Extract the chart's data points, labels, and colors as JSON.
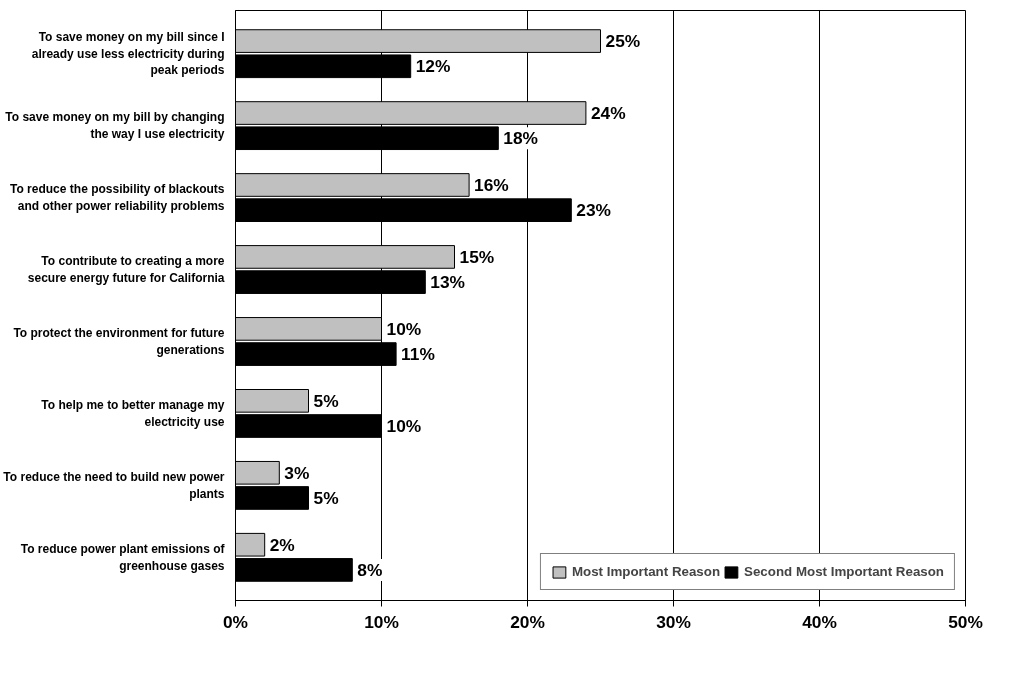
{
  "chart_data": {
    "type": "bar",
    "orientation": "horizontal",
    "categories": [
      "To save money on my bill since I already use less electricity during peak periods",
      "To save money on my bill by changing the way I use electricity",
      "To reduce the possibility of blackouts and other power reliability problems",
      "To contribute to creating a more secure energy future for California",
      "To protect the environment for future generations",
      "To help me to better manage my electricity use",
      "To reduce the need to build new power plants",
      "To reduce power plant emissions of greenhouse gases"
    ],
    "series": [
      {
        "name": "Most Important Reason",
        "color": "#c0c0c0",
        "values": [
          25,
          24,
          16,
          15,
          10,
          5,
          3,
          2
        ],
        "value_labels": [
          "25%",
          "24%",
          "16%",
          "15%",
          "10%",
          "5%",
          "3%",
          "2%"
        ]
      },
      {
        "name": "Second Most Important Reason",
        "color": "#000000",
        "values": [
          12,
          18,
          23,
          13,
          11,
          10,
          5,
          8
        ],
        "value_labels": [
          "12%",
          "18%",
          "23%",
          "13%",
          "11%",
          "10%",
          "5%",
          "8%"
        ]
      }
    ],
    "xlim": [
      0,
      50
    ],
    "xticks": [
      {
        "value": 0,
        "label": "0%"
      },
      {
        "value": 10,
        "label": "10%"
      },
      {
        "value": 20,
        "label": "20%"
      },
      {
        "value": 30,
        "label": "30%"
      },
      {
        "value": 40,
        "label": "40%"
      },
      {
        "value": 50,
        "label": "50%"
      }
    ],
    "grid": "x",
    "legend": "bottom right"
  }
}
